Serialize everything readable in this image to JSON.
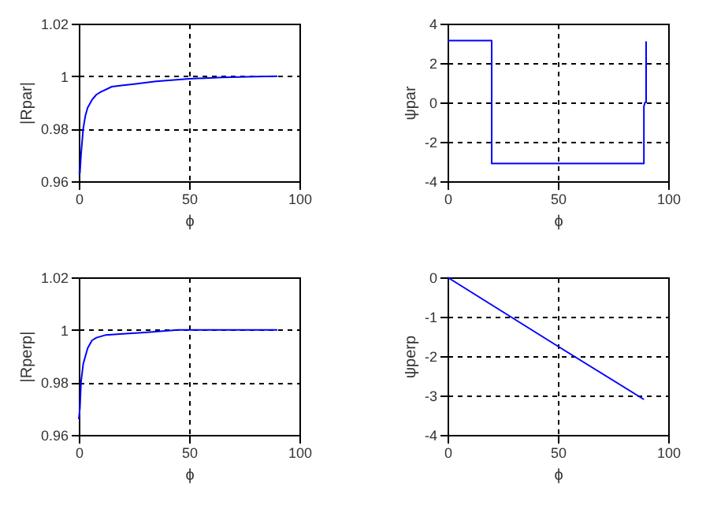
{
  "chart_data": [
    {
      "type": "line",
      "xlabel": "ϕ",
      "ylabel": "|Rpar|",
      "xlim": [
        0,
        100
      ],
      "xticks": [
        0,
        50,
        100
      ],
      "ylim": [
        0.96,
        1.02
      ],
      "yticks": [
        0.96,
        0.98,
        1,
        1.02
      ],
      "grid": true,
      "line_style": "solid",
      "series": [
        {
          "color": "#0000ff",
          "x": [
            0,
            0.5,
            1,
            2,
            3,
            4,
            6,
            8,
            10,
            15,
            20,
            25,
            35,
            50,
            65,
            80,
            90
          ],
          "values": [
            0.9635,
            0.963,
            0.97,
            0.98,
            0.985,
            0.988,
            0.991,
            0.993,
            0.994,
            0.996,
            0.9965,
            0.997,
            0.998,
            0.999,
            0.9995,
            0.9998,
            1
          ]
        }
      ]
    },
    {
      "type": "line",
      "xlabel": "ϕ",
      "ylabel": "ψpar",
      "xlim": [
        0,
        100
      ],
      "xticks": [
        0,
        50,
        100
      ],
      "ylim": [
        -4,
        4
      ],
      "yticks": [
        -4,
        -2,
        0,
        2,
        4
      ],
      "grid": true,
      "line_style": "solid",
      "series": [
        {
          "color": "#0000ff",
          "x": [
            0,
            20,
            20,
            89,
            89,
            89.5,
            90,
            90
          ],
          "values": [
            3.14,
            3.14,
            -3.1,
            -3.1,
            -0.2,
            0,
            0,
            3.1
          ]
        }
      ]
    },
    {
      "type": "line",
      "xlabel": "ϕ",
      "ylabel": "|Rperp|",
      "xlim": [
        0,
        100
      ],
      "xticks": [
        0,
        50,
        100
      ],
      "ylim": [
        0.96,
        1.02
      ],
      "yticks": [
        0.96,
        0.98,
        1,
        1.02
      ],
      "grid": true,
      "line_style": "solid",
      "series": [
        {
          "color": "#0000ff",
          "x": [
            0,
            0.5,
            1,
            2,
            3,
            4,
            6,
            8,
            12,
            20,
            30,
            45,
            60,
            90
          ],
          "values": [
            0.966,
            0.97,
            0.98,
            0.987,
            0.99,
            0.993,
            0.996,
            0.997,
            0.998,
            0.9985,
            0.999,
            1,
            1,
            1
          ]
        }
      ]
    },
    {
      "type": "line",
      "xlabel": "ϕ",
      "ylabel": "ψperp",
      "xlim": [
        0,
        100
      ],
      "xticks": [
        0,
        50,
        100
      ],
      "ylim": [
        -4,
        0
      ],
      "yticks": [
        -4,
        -3,
        -2,
        -1,
        0
      ],
      "grid": true,
      "line_style": "solid",
      "series": [
        {
          "color": "#0000ff",
          "x": [
            0,
            50,
            89
          ],
          "values": [
            0,
            -1.75,
            -3.1
          ]
        }
      ]
    }
  ]
}
